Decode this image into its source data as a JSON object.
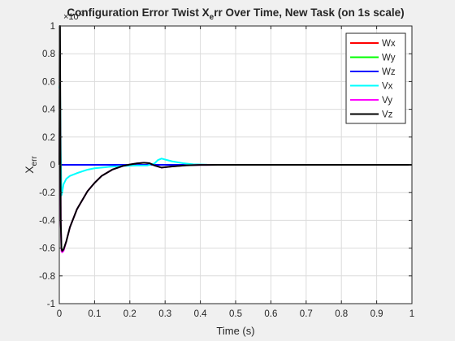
{
  "chart_data": {
    "type": "line",
    "title": "Configuration Error Twist X",
    "title_sub": "e",
    "title_suffix": "rr Over Time, New Task (on 1s scale)",
    "xlabel": "Time (s)",
    "ylabel": "X",
    "ylabel_sub": "err",
    "exponent_label": "×10",
    "exponent_power": "-3",
    "xlim": [
      0,
      1
    ],
    "ylim": [
      -1,
      1
    ],
    "xticks": [
      0,
      0.1,
      0.2,
      0.3,
      0.4,
      0.5,
      0.6,
      0.7,
      0.8,
      0.9,
      1
    ],
    "xtick_labels": [
      "0",
      "0.1",
      "0.2",
      "0.3",
      "0.4",
      "0.5",
      "0.6",
      "0.7",
      "0.8",
      "0.9",
      "1"
    ],
    "yticks": [
      -1,
      -0.8,
      -0.6,
      -0.4,
      -0.2,
      0,
      0.2,
      0.4,
      0.6,
      0.8,
      1
    ],
    "ytick_labels": [
      "-1",
      "-0.8",
      "-0.6",
      "-0.4",
      "-0.2",
      "0",
      "0.2",
      "0.4",
      "0.6",
      "0.8",
      "1"
    ],
    "grid": true,
    "legend_position": "top-right",
    "series": [
      {
        "name": "Wx",
        "color": "#ff0000",
        "x": [
          0,
          1
        ],
        "y": [
          0,
          0
        ]
      },
      {
        "name": "Wy",
        "color": "#00ff00",
        "x": [
          0,
          1
        ],
        "y": [
          0,
          0
        ]
      },
      {
        "name": "Wz",
        "color": "#0000ff",
        "x": [
          0,
          1
        ],
        "y": [
          0,
          0
        ]
      },
      {
        "name": "Vx",
        "color": "#00ffff",
        "x": [
          0,
          0.002,
          0.004,
          0.006,
          0.008,
          0.012,
          0.02,
          0.03,
          0.05,
          0.08,
          0.1,
          0.14,
          0.18,
          0.22,
          0.25,
          0.27,
          0.28,
          0.29,
          0.3,
          0.32,
          0.35,
          0.38,
          0.42,
          0.5,
          0.6,
          1.0
        ],
        "y": [
          0.55,
          0.6,
          0.1,
          -0.22,
          -0.2,
          -0.14,
          -0.1,
          -0.08,
          -0.06,
          -0.035,
          -0.025,
          -0.015,
          -0.008,
          -0.005,
          -0.005,
          0.01,
          0.035,
          0.045,
          0.038,
          0.025,
          0.012,
          0.004,
          0.001,
          0,
          0,
          0
        ]
      },
      {
        "name": "Vy",
        "color": "#ff00ff",
        "x": [
          0,
          0.002,
          0.004,
          0.006,
          0.008,
          0.012,
          0.02,
          0.03,
          0.05,
          0.08,
          0.1,
          0.12,
          0.15,
          0.18,
          0.2,
          0.22,
          0.24,
          0.255,
          0.27,
          0.29,
          0.32,
          0.36,
          0.4,
          0.45,
          0.5,
          0.6,
          1.0
        ],
        "y": [
          0,
          0.5,
          -0.4,
          -0.62,
          -0.63,
          -0.62,
          -0.55,
          -0.45,
          -0.32,
          -0.19,
          -0.13,
          -0.08,
          -0.035,
          -0.008,
          0.002,
          0.01,
          0.015,
          0.012,
          -0.005,
          -0.02,
          -0.012,
          -0.004,
          -0.001,
          0,
          0,
          0,
          0
        ]
      },
      {
        "name": "Vz",
        "color": "#000000",
        "x": [
          0,
          0.001,
          0.002,
          0.003,
          0.004,
          0.006,
          0.008,
          0.012,
          0.02,
          0.03,
          0.05,
          0.08,
          0.1,
          0.12,
          0.15,
          0.18,
          0.2,
          0.22,
          0.24,
          0.255,
          0.27,
          0.29,
          0.32,
          0.36,
          0.4,
          0.45,
          0.5,
          0.6,
          1.0
        ],
        "y": [
          0,
          0.8,
          1.0,
          0.3,
          -0.4,
          -0.6,
          -0.62,
          -0.61,
          -0.55,
          -0.45,
          -0.32,
          -0.19,
          -0.13,
          -0.08,
          -0.035,
          -0.008,
          0.002,
          0.01,
          0.015,
          0.012,
          -0.005,
          -0.02,
          -0.012,
          -0.004,
          -0.001,
          0,
          0,
          0,
          0
        ]
      }
    ]
  }
}
